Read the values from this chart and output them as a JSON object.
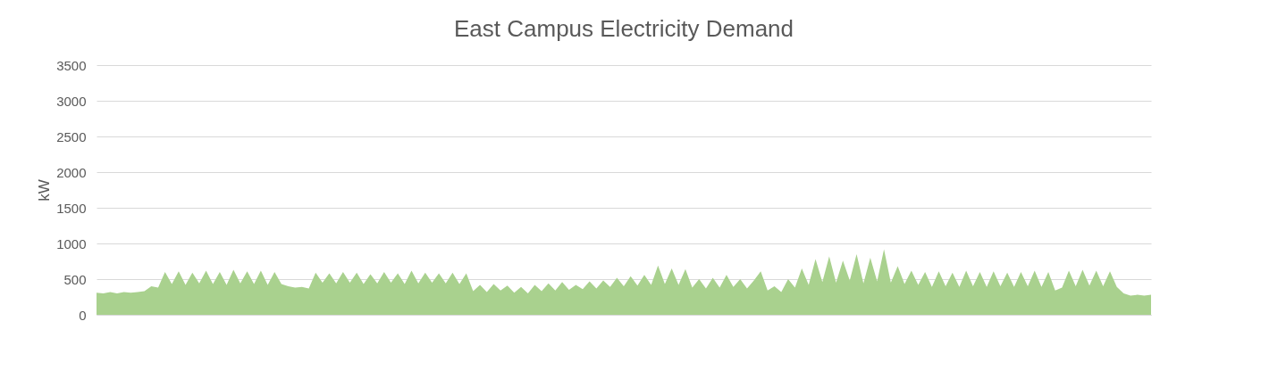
{
  "chart_data": {
    "type": "area",
    "title": "East Campus Electricity Demand",
    "ylabel": "kW",
    "categories": [
      null,
      null,
      null,
      null,
      null,
      null,
      null,
      null,
      null,
      null,
      null,
      null,
      null,
      null,
      null,
      null,
      null,
      null,
      null,
      null,
      null,
      null,
      null,
      null,
      null,
      null,
      null,
      null,
      null,
      null,
      null,
      null,
      null,
      null,
      null,
      null,
      null,
      null,
      null,
      null,
      null,
      null,
      null,
      null,
      null,
      null,
      null,
      null,
      null,
      null,
      null,
      null,
      null,
      null,
      null,
      null,
      null,
      null,
      null,
      null,
      null,
      null,
      null,
      null,
      null,
      null,
      null,
      null,
      null,
      null,
      null,
      null,
      null,
      null,
      null,
      null,
      null,
      null,
      null,
      null,
      null,
      null,
      null,
      null,
      null,
      null,
      null,
      null,
      null,
      null,
      null,
      null,
      null,
      null,
      null,
      null,
      null,
      null,
      null,
      null,
      null,
      null,
      null,
      null,
      null,
      null,
      null,
      null,
      null,
      null,
      null,
      null,
      null,
      null,
      null,
      null,
      null,
      null,
      null,
      null,
      null,
      null,
      null,
      null,
      null,
      null,
      null,
      null,
      null,
      null,
      null,
      null,
      null,
      null,
      null,
      null,
      null,
      null,
      null,
      null,
      null,
      null,
      null,
      null,
      null,
      null,
      null,
      null,
      null,
      null,
      null,
      null,
      null,
      null,
      null
    ],
    "series": [
      {
        "color": "#a9d18e",
        "values": [
          310,
          300,
          320,
          300,
          320,
          310,
          320,
          330,
          400,
          380,
          600,
          430,
          610,
          420,
          590,
          440,
          620,
          430,
          600,
          420,
          630,
          440,
          610,
          430,
          620,
          420,
          600,
          430,
          400,
          380,
          390,
          370,
          590,
          450,
          580,
          440,
          600,
          450,
          590,
          430,
          570,
          440,
          600,
          450,
          580,
          430,
          620,
          440,
          590,
          450,
          580,
          440,
          590,
          430,
          580,
          330,
          420,
          320,
          430,
          340,
          410,
          310,
          390,
          300,
          420,
          330,
          440,
          340,
          460,
          350,
          420,
          360,
          470,
          370,
          480,
          390,
          520,
          400,
          540,
          410,
          560,
          420,
          690,
          430,
          650,
          420,
          640,
          380,
          500,
          370,
          520,
          380,
          560,
          390,
          500,
          370,
          480,
          610,
          340,
          400,
          320,
          500,
          380,
          650,
          420,
          780,
          460,
          820,
          450,
          760,
          480,
          850,
          440,
          800,
          470,
          920,
          450,
          680,
          430,
          620,
          420,
          600,
          390,
          610,
          400,
          590,
          390,
          620,
          400,
          600,
          390,
          610,
          400,
          590,
          390,
          600,
          400,
          620,
          390,
          600,
          340,
          380,
          620,
          400,
          630,
          410,
          620,
          400,
          610,
          390,
          300,
          270,
          280,
          270,
          280
        ]
      }
    ],
    "ylim": [
      0,
      3500
    ],
    "yticks": [
      0,
      500,
      1000,
      1500,
      2000,
      2500,
      3000,
      3500
    ],
    "grid": "y",
    "tick_labels": "y"
  }
}
